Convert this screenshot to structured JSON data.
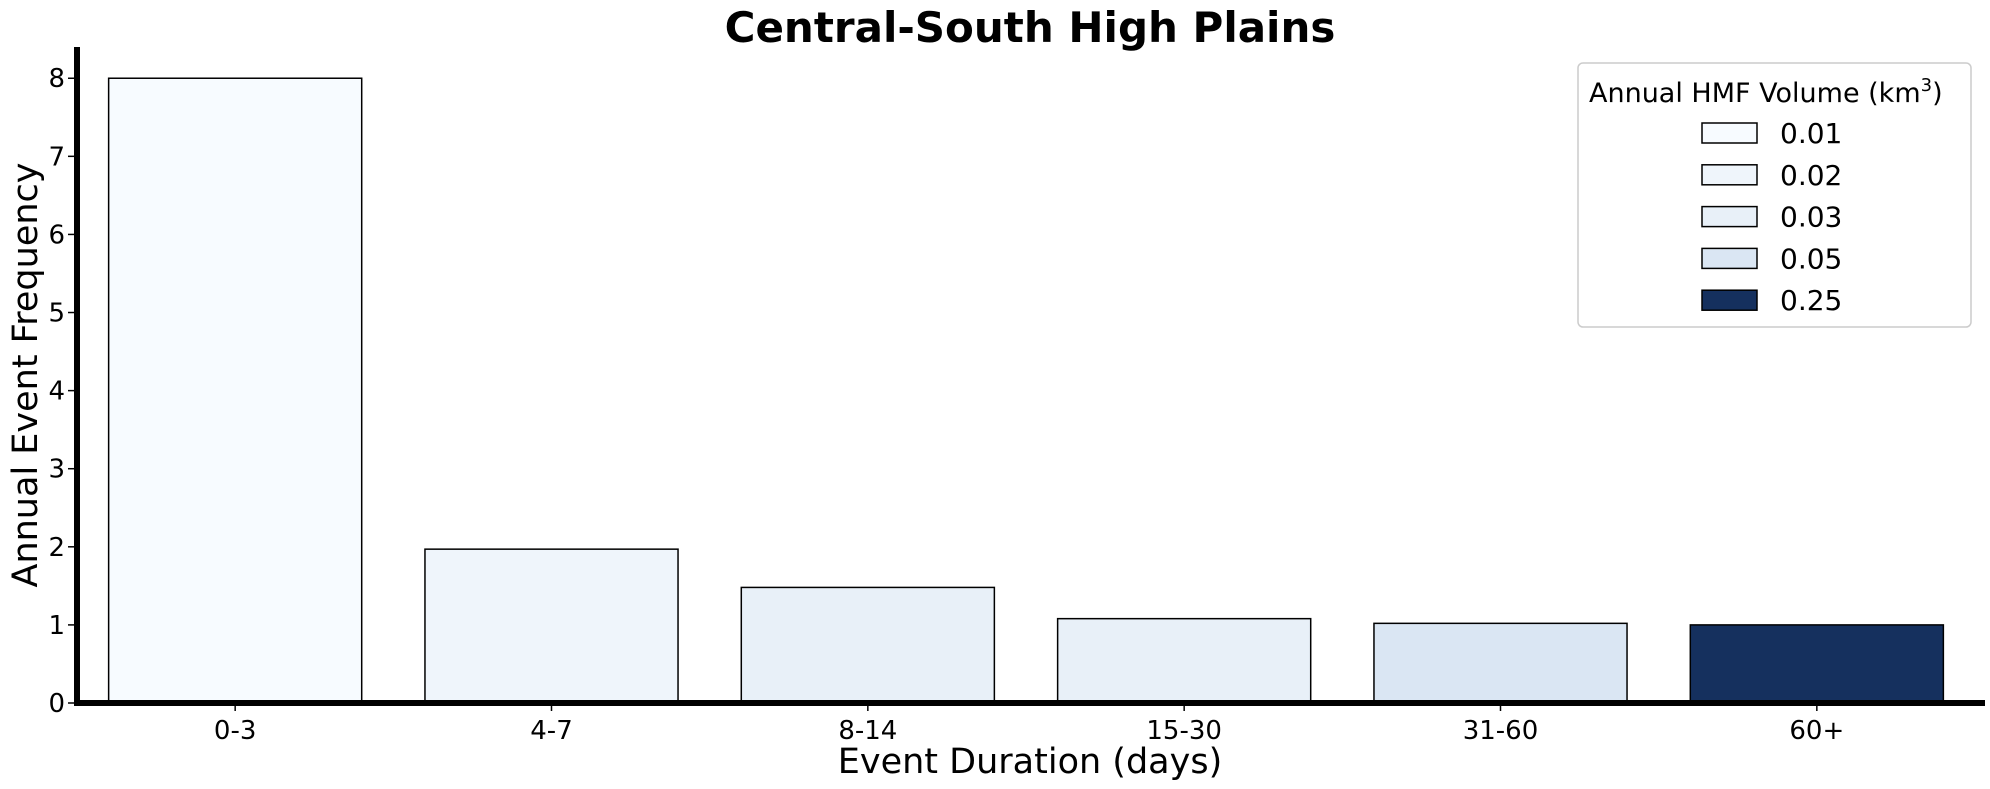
{
  "chart_data": {
    "type": "bar",
    "title": "Central-South High Plains",
    "xlabel": "Event Duration (days)",
    "ylabel": "Annual Event Frequency",
    "categories": [
      "0-3",
      "4-7",
      "8-14",
      "15-30",
      "31-60",
      "60+"
    ],
    "values": [
      8.0,
      1.97,
      1.48,
      1.08,
      1.02,
      1.0
    ],
    "bar_colors": [
      "#f7fbff",
      "#eff5fb",
      "#e8f0f8",
      "#e8f0f8",
      "#dae6f3",
      "#15305e"
    ],
    "ylim": [
      0,
      8.4
    ],
    "yticks": [
      0,
      1,
      2,
      3,
      4,
      5,
      6,
      7,
      8
    ],
    "grid": false,
    "legend": {
      "title_prefix": "Annual HMF Volume (km",
      "title_sup": "3",
      "title_suffix": ")",
      "placement": "top-right",
      "entries": [
        {
          "label": "0.01",
          "color": "#f7fbff"
        },
        {
          "label": "0.02",
          "color": "#eff5fb"
        },
        {
          "label": "0.03",
          "color": "#e8f0f8"
        },
        {
          "label": "0.05",
          "color": "#dae6f3"
        },
        {
          "label": "0.25",
          "color": "#15305e"
        }
      ]
    }
  }
}
